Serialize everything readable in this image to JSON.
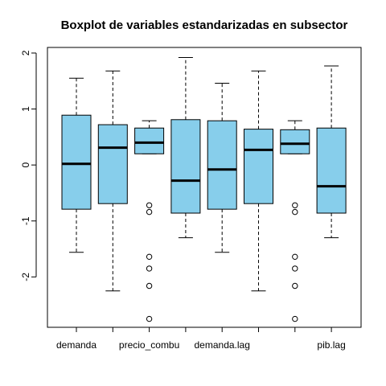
{
  "chart_data": {
    "type": "boxplot",
    "title": "Boxplot de variables estandarizadas en subsector",
    "xlabel": "",
    "ylabel": "",
    "ylim": [
      -2.9,
      2.1
    ],
    "y_ticks": [
      -2,
      -1,
      0,
      1,
      2
    ],
    "y_tick_labels": [
      "-2",
      "-1",
      "0",
      "1",
      "2"
    ],
    "grid": false,
    "box_color": "#87CEEB",
    "categories": [
      "demanda",
      "",
      "precio_combu",
      "",
      "demanda.lag",
      "",
      "",
      "pib.lag"
    ],
    "boxes": [
      {
        "whisker_low": -1.56,
        "q1": -0.79,
        "median": 0.02,
        "q3": 0.89,
        "whisker_high": 1.55,
        "outliers": []
      },
      {
        "whisker_low": -2.25,
        "q1": -0.69,
        "median": 0.31,
        "q3": 0.72,
        "whisker_high": 1.68,
        "outliers": []
      },
      {
        "whisker_low": 0.2,
        "q1": 0.2,
        "median": 0.4,
        "q3": 0.66,
        "whisker_high": 0.79,
        "outliers": [
          -0.72,
          -0.84,
          -1.64,
          -1.85,
          -2.16,
          -2.75
        ]
      },
      {
        "whisker_low": -1.3,
        "q1": -0.86,
        "median": -0.28,
        "q3": 0.81,
        "whisker_high": 1.92,
        "outliers": []
      },
      {
        "whisker_low": -1.56,
        "q1": -0.79,
        "median": -0.08,
        "q3": 0.79,
        "whisker_high": 1.46,
        "outliers": []
      },
      {
        "whisker_low": -2.25,
        "q1": -0.69,
        "median": 0.27,
        "q3": 0.64,
        "whisker_high": 1.68,
        "outliers": []
      },
      {
        "whisker_low": 0.2,
        "q1": 0.2,
        "median": 0.38,
        "q3": 0.63,
        "whisker_high": 0.79,
        "outliers": [
          -0.72,
          -0.84,
          -1.64,
          -1.85,
          -2.16,
          -2.75
        ]
      },
      {
        "whisker_low": -1.3,
        "q1": -0.86,
        "median": -0.38,
        "q3": 0.66,
        "whisker_high": 1.77,
        "outliers": []
      }
    ]
  }
}
